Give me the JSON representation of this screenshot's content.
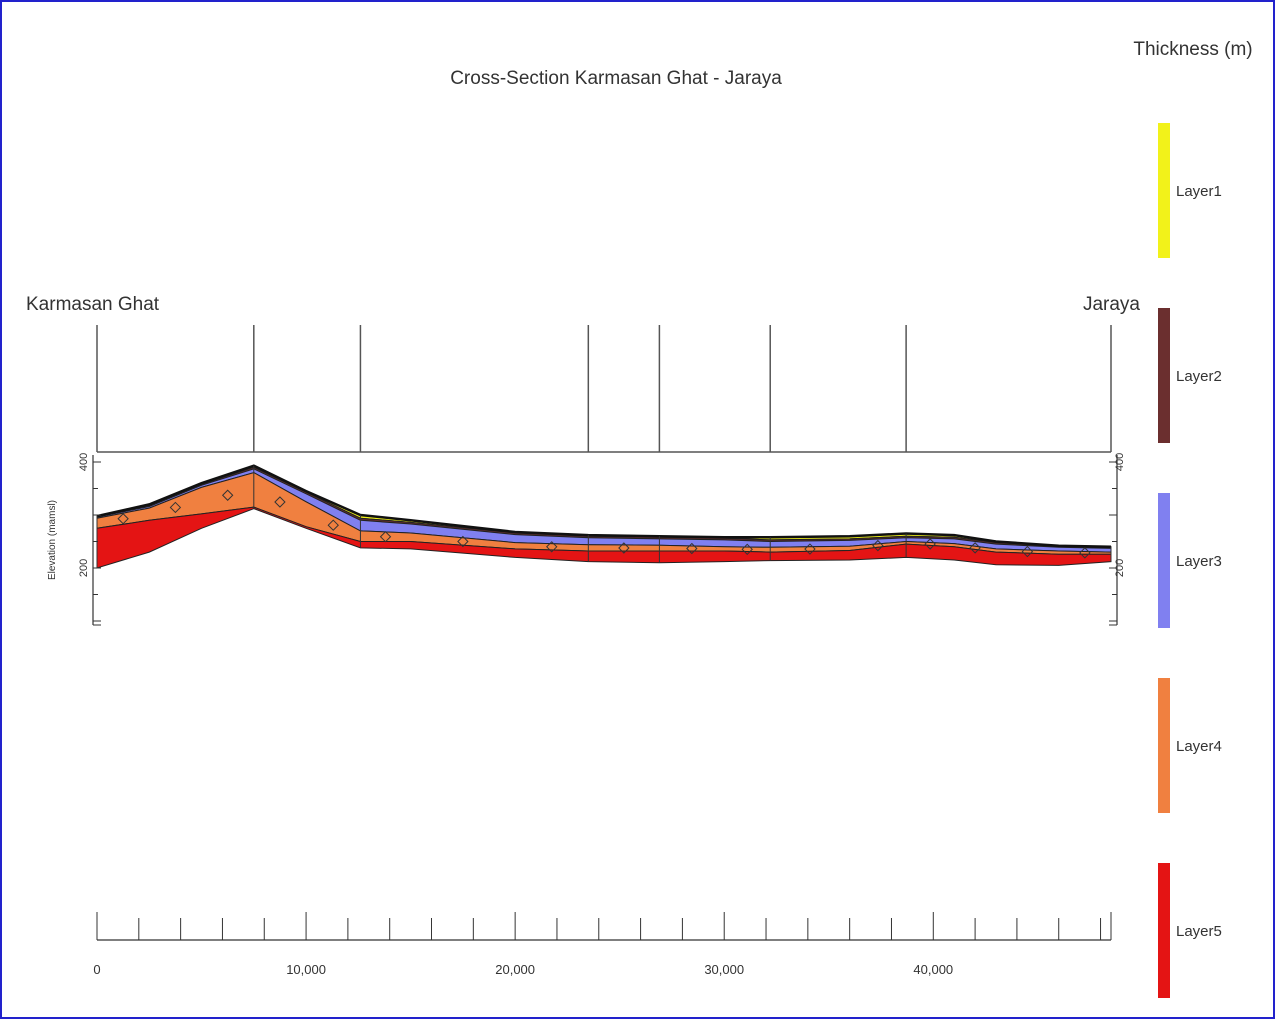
{
  "title": "Cross-Section Karmasan Ghat - Jaraya",
  "left_station": "Karmasan Ghat",
  "right_station": "Jaraya",
  "legend_title": "Thickness (m)",
  "elevation_axis_label": "Elevation (mamsl)",
  "colors": {
    "frame": "#2222cc",
    "Layer1": "#f2f21a",
    "Layer2": "#6b2f2f",
    "Layer3": "#8080f0",
    "Layer4": "#f08040",
    "Layer5": "#e41414",
    "line": "#222222"
  },
  "legend": [
    {
      "name": "Layer1",
      "color": "#f2f21a"
    },
    {
      "name": "Layer2",
      "color": "#6b2f2f"
    },
    {
      "name": "Layer3",
      "color": "#8080f0"
    },
    {
      "name": "Layer4",
      "color": "#f08040"
    },
    {
      "name": "Layer5",
      "color": "#e41414"
    }
  ],
  "chart_data": {
    "type": "area",
    "xlabel": "",
    "ylabel": "Elevation (mamsl)",
    "xlim": [
      0,
      48500
    ],
    "ylim": [
      100,
      410
    ],
    "x_ticks": [
      0,
      10000,
      20000,
      30000,
      40000
    ],
    "x_tick_labels": [
      "0",
      "10,000",
      "20,000",
      "30,000",
      "40,000"
    ],
    "y_ticks": [
      200,
      400
    ],
    "y_tick_labels": [
      "200",
      "400"
    ],
    "boreholes_x": [
      0,
      7500,
      12600,
      23500,
      26900,
      32200,
      38700,
      48500
    ],
    "x": [
      0,
      2500,
      5000,
      7500,
      10000,
      12600,
      15000,
      20000,
      23500,
      26900,
      30000,
      32200,
      36000,
      38700,
      41000,
      43000,
      46000,
      48500
    ],
    "surfaces": [
      {
        "name": "ground",
        "values": [
          298,
          320,
          360,
          393,
          345,
          300,
          290,
          268,
          262,
          260,
          258,
          258,
          260,
          265,
          262,
          250,
          242,
          240
        ]
      },
      {
        "name": "Layer1 base",
        "values": [
          297,
          318,
          358,
          390,
          343,
          294,
          286,
          266,
          260,
          258,
          256,
          253,
          255,
          260,
          258,
          248,
          241,
          239
        ]
      },
      {
        "name": "Layer2 base",
        "values": [
          296,
          316,
          356,
          387,
          340,
          290,
          283,
          263,
          257,
          255,
          253,
          250,
          252,
          257,
          255,
          245,
          239,
          237
        ]
      },
      {
        "name": "Layer3 base",
        "values": [
          294,
          313,
          352,
          380,
          325,
          270,
          266,
          248,
          244,
          243,
          240,
          239,
          241,
          250,
          246,
          236,
          232,
          230
        ]
      },
      {
        "name": "Layer4 base",
        "values": [
          275,
          290,
          302,
          315,
          278,
          250,
          250,
          236,
          232,
          232,
          232,
          230,
          233,
          245,
          240,
          230,
          226,
          226
        ]
      },
      {
        "name": "Layer5 base",
        "values": [
          200,
          230,
          275,
          312,
          275,
          238,
          236,
          220,
          212,
          210,
          212,
          214,
          215,
          220,
          215,
          206,
          205,
          212
        ]
      }
    ]
  }
}
